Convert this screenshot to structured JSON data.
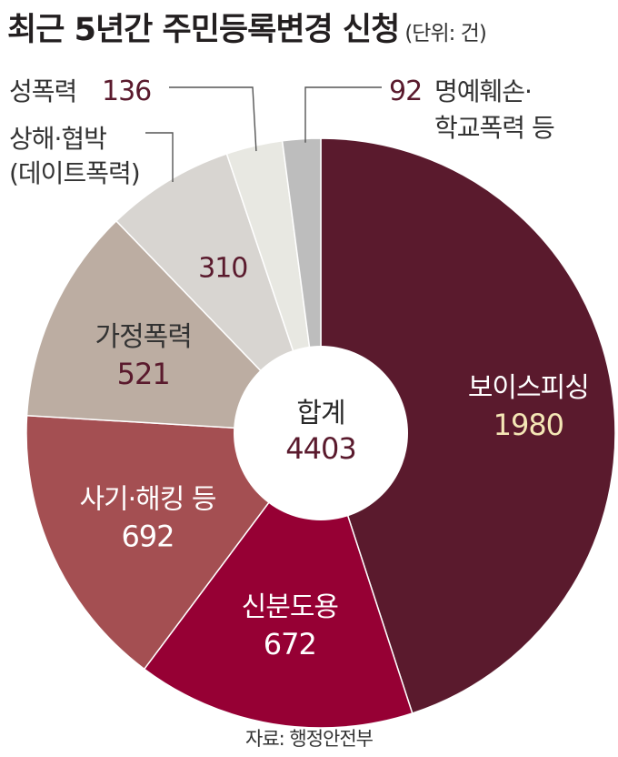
{
  "title": "최근 5년간 주민등록변경 신청",
  "unit": "(단위: 건)",
  "source": "자료: 행정안전부",
  "center": {
    "label": "합계",
    "value": "4403"
  },
  "chart_data": {
    "type": "pie",
    "title": "최근 5년간 주민등록변경 신청",
    "unit": "건",
    "total": 4403,
    "slices": [
      {
        "label": "보이스피싱",
        "value": 1980,
        "color": "#5a1a2d"
      },
      {
        "label": "신분도용",
        "value": 672,
        "color": "#960034"
      },
      {
        "label": "사기·해킹 등",
        "value": 692,
        "color": "#a44f52"
      },
      {
        "label": "가정폭력",
        "value": 521,
        "color": "#bcada2"
      },
      {
        "label": "상해·협박 (데이트폭력)",
        "label_lines": [
          "상해·협박",
          "(데이트폭력)"
        ],
        "value": 310,
        "color": "#d8d5d1"
      },
      {
        "label": "성폭력",
        "value": 136,
        "color": "#e8e8e2"
      },
      {
        "label": "명예훼손·학교폭력 등",
        "label_lines": [
          "명예훼손·",
          "학교폭력 등"
        ],
        "value": 92,
        "color": "#bdbdbd"
      }
    ]
  }
}
